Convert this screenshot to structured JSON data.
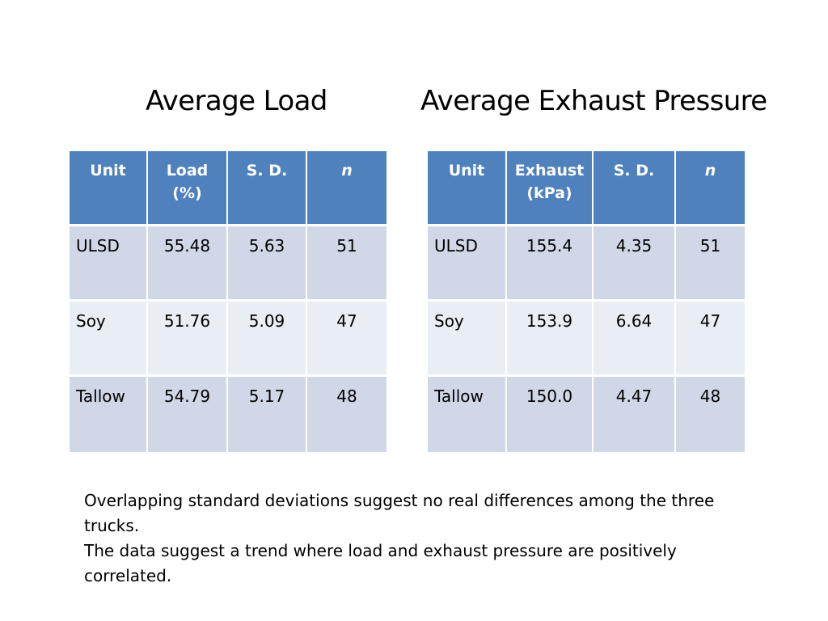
{
  "headings": {
    "left": "Average Load",
    "right": "Average Exhaust Pressure"
  },
  "colors": {
    "header_bg": "#4f81bd",
    "row_odd_bg": "#d0d8e8",
    "row_even_bg": "#e9edf4"
  },
  "load_table": {
    "headers": [
      "Unit",
      "Load\n(%)",
      "S. D.",
      "n"
    ],
    "rows": [
      [
        "ULSD",
        "55.48",
        "5.63",
        "51"
      ],
      [
        "Soy",
        "51.76",
        "5.09",
        "47"
      ],
      [
        "Tallow",
        "54.79",
        "5.17",
        "48"
      ]
    ]
  },
  "exhaust_table": {
    "headers": [
      "Unit",
      "Exhaust\n(kPa)",
      "S. D.",
      "n"
    ],
    "rows": [
      [
        "ULSD",
        "155.4",
        "4.35",
        "51"
      ],
      [
        "Soy",
        "153.9",
        "6.64",
        "47"
      ],
      [
        "Tallow",
        "150.0",
        "4.47",
        "48"
      ]
    ]
  },
  "notes": [
    "Overlapping standard deviations suggest no real differences among the three trucks.",
    "The data suggest a trend where load and exhaust pressure are positively correlated."
  ]
}
